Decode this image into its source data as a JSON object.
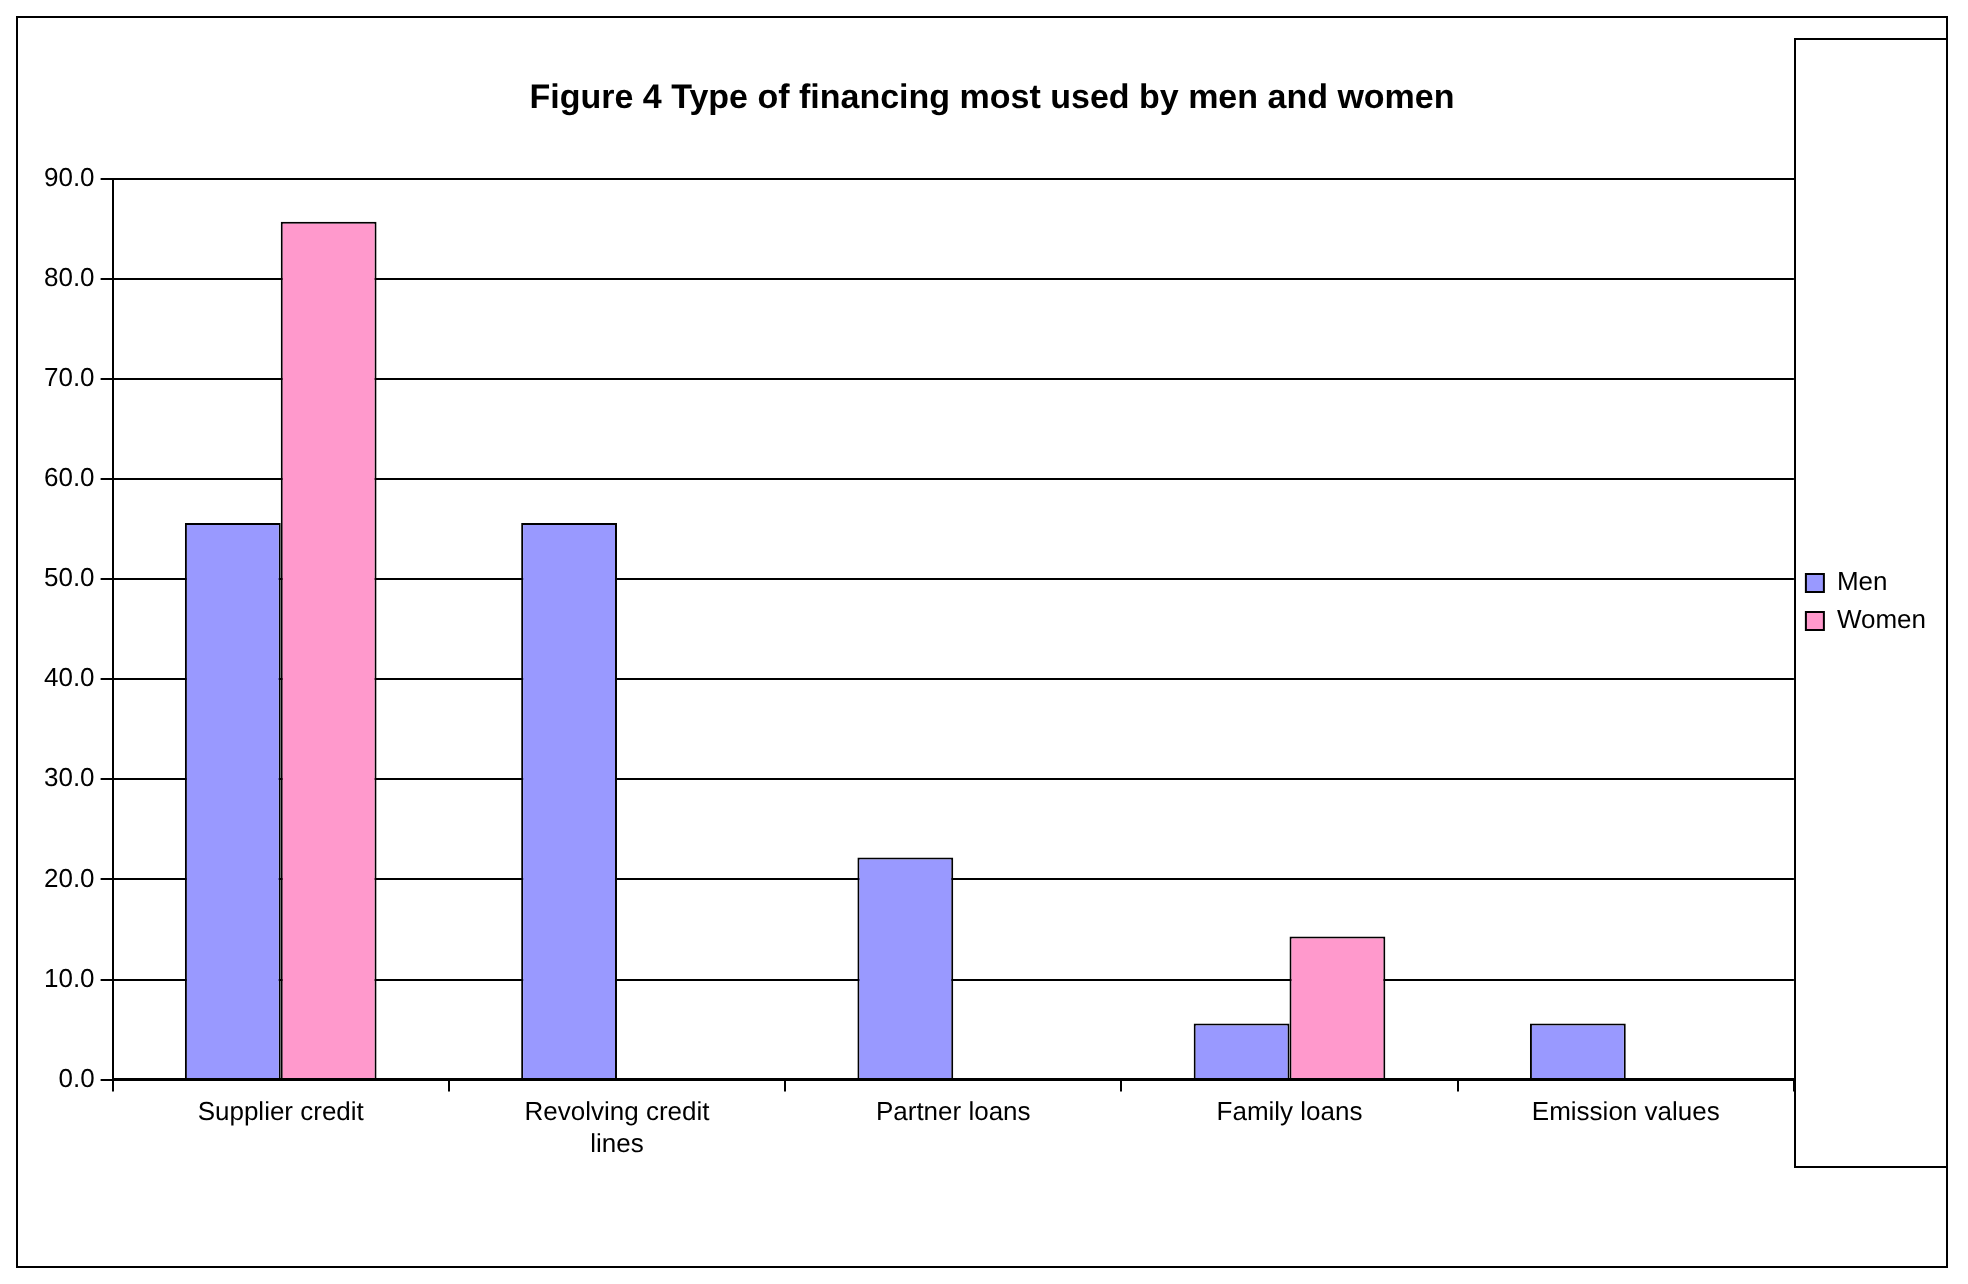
{
  "chart_data": {
    "type": "bar",
    "title": "Figure 4 Type of financing most used by men and women",
    "categories": [
      "Supplier credit",
      "Revolving credit lines",
      "Partner loans",
      "Family loans",
      "Emission values"
    ],
    "series": [
      {
        "name": "Men",
        "color": "#9999ff",
        "values": [
          55.6,
          55.6,
          22.2,
          5.6,
          5.6
        ]
      },
      {
        "name": "Women",
        "color": "#ff99cc",
        "values": [
          85.7,
          0,
          0,
          14.3,
          0
        ]
      }
    ],
    "ylim": [
      0,
      90
    ],
    "yticks": [
      {
        "value": 0,
        "label": "0.0"
      },
      {
        "value": 10,
        "label": "10.0"
      },
      {
        "value": 20,
        "label": "20.0"
      },
      {
        "value": 30,
        "label": "30.0"
      },
      {
        "value": 40,
        "label": "40.0"
      },
      {
        "value": 50,
        "label": "50.0"
      },
      {
        "value": 60,
        "label": "60.0"
      },
      {
        "value": 70,
        "label": "70.0"
      },
      {
        "value": 80,
        "label": "80.0"
      },
      {
        "value": 90,
        "label": "90.0"
      }
    ],
    "grid": "y",
    "legend": "right"
  }
}
